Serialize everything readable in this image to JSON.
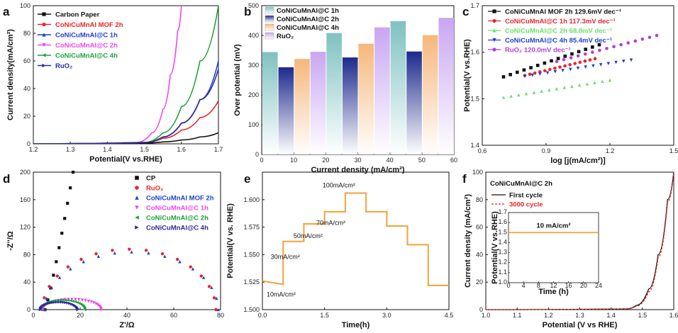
{
  "colors": {
    "black": "#111111",
    "red": "#e8262b",
    "blue": "#1f3fd0",
    "magenta": "#ee48ee",
    "green": "#1fa33a",
    "navy": "#2a2a9a",
    "orange": "#f2a23a",
    "teal": "#7fc1c1",
    "lightgreen": "#6ce06c"
  },
  "chart_data": [
    {
      "panel": "a",
      "type": "line",
      "xlabel": "Potential(V vs.RHE)",
      "ylabel": "Current density(mA/cm²)",
      "xlim": [
        1.2,
        1.7
      ],
      "ylim": [
        0,
        100
      ],
      "xticks": [
        "1.2",
        "1.3",
        "1.4",
        "1.5",
        "1.6",
        "1.7"
      ],
      "yticks": [
        "0",
        "20",
        "40",
        "60",
        "80",
        "100"
      ],
      "series": [
        {
          "name": "Carbon Paper",
          "color": "#111111",
          "marker": "square",
          "x": [
            1.2,
            1.45,
            1.5,
            1.55,
            1.6,
            1.65,
            1.7
          ],
          "y": [
            0,
            0.3,
            0.6,
            1.4,
            2.8,
            5,
            8
          ]
        },
        {
          "name": "CoNiCuMnAl MOF 2h",
          "color": "#e8262b",
          "marker": "circle",
          "x": [
            1.2,
            1.5,
            1.55,
            1.6,
            1.65,
            1.7
          ],
          "y": [
            0,
            1,
            4,
            10,
            19,
            31
          ]
        },
        {
          "name": "CoNiCuMnAl@C 1h",
          "color": "#1f3fd0",
          "marker": "triangle",
          "x": [
            1.2,
            1.5,
            1.55,
            1.6,
            1.65,
            1.7
          ],
          "y": [
            0,
            1,
            5,
            15,
            32,
            60
          ]
        },
        {
          "name": "CoNiCuMnAl@C 2h",
          "color": "#ee48ee",
          "marker": "triangle-down",
          "x": [
            1.2,
            1.48,
            1.52,
            1.55,
            1.57,
            1.59,
            1.6
          ],
          "y": [
            0,
            1,
            8,
            25,
            50,
            82,
            100
          ]
        },
        {
          "name": "CoNiCuMnAl@C 4h",
          "color": "#1fa33a",
          "marker": "triangle-left",
          "x": [
            1.2,
            1.5,
            1.55,
            1.6,
            1.65,
            1.7
          ],
          "y": [
            0,
            1,
            8,
            27,
            60,
            100
          ]
        },
        {
          "name": "RuO₂",
          "color": "#2a2a9a",
          "marker": "triangle-right",
          "x": [
            1.2,
            1.5,
            1.55,
            1.6,
            1.65,
            1.7
          ],
          "y": [
            0,
            1,
            5,
            15,
            32,
            54
          ]
        }
      ]
    },
    {
      "panel": "b",
      "type": "bar",
      "xlabel": "Current density (mA/cm²)",
      "ylabel": "Over potential (mV)",
      "xlim": [
        0,
        60
      ],
      "ylim": [
        0,
        500
      ],
      "xticks": [
        "0",
        "10",
        "20",
        "30",
        "40",
        "50",
        "60"
      ],
      "yticks": [
        "0",
        "100",
        "200",
        "300",
        "400",
        "500"
      ],
      "categories": [
        "10",
        "30",
        "50"
      ],
      "series": [
        {
          "name": "CoNiCuMnAl@C 1h",
          "color": "#7fc1c1",
          "values": [
            344,
            408,
            448
          ]
        },
        {
          "name": "CoNiCuMnAl@C 2h",
          "color": "#1c2a8c",
          "values": [
            293,
            326,
            346
          ]
        },
        {
          "name": "CoNiCuMnAl@C 4h",
          "color": "#f6b77a",
          "values": [
            321,
            372,
            401
          ]
        },
        {
          "name": "RuO₂",
          "color": "#c9a6f2",
          "values": [
            345,
            427,
            459
          ]
        }
      ]
    },
    {
      "panel": "c",
      "type": "scatter",
      "xlabel": "log [j(mA/cm²)]",
      "ylabel": "Potential(V vs.RHE)",
      "xlim": [
        0.6,
        1.5
      ],
      "ylim": [
        1.4,
        1.7
      ],
      "xticks": [
        "0.6",
        "0.9",
        "1.2",
        "1.5"
      ],
      "yticks": [
        "1.4",
        "1.5",
        "1.6",
        "1.7"
      ],
      "series": [
        {
          "name": "CoNiCuMnAl MOF 2h",
          "tafel": "129.6mV dec⁻¹",
          "color": "#111111",
          "marker": "square",
          "x0": 0.7,
          "x1": 1.15,
          "y0": 1.547,
          "y1": 1.616
        },
        {
          "name": "CoNiCuMnAl@C 1h",
          "tafel": "117.3mV dec⁻¹",
          "color": "#e8262b",
          "marker": "circle",
          "x0": 0.8,
          "x1": 1.13,
          "y0": 1.55,
          "y1": 1.586
        },
        {
          "name": "CoNiCuMnAl@C 2h",
          "tafel": "68.8mV dec⁻¹",
          "color": "#6ce06c",
          "marker": "triangle",
          "x0": 0.7,
          "x1": 1.2,
          "y0": 1.503,
          "y1": 1.54
        },
        {
          "name": "CoNiCuMnAl@C 4h",
          "tafel": "85.4mV dec⁻¹",
          "color": "#1f3fd0",
          "marker": "triangle-down",
          "x0": 0.8,
          "x1": 1.3,
          "y0": 1.548,
          "y1": 1.583
        },
        {
          "name": "RuO₂",
          "tafel": "120.0mV dec⁻¹",
          "color": "#b23fd6",
          "marker": "circle",
          "x0": 0.95,
          "x1": 1.42,
          "y0": 1.58,
          "y1": 1.636
        }
      ]
    },
    {
      "panel": "d",
      "type": "scatter",
      "xlabel": "Z'/Ω",
      "ylabel": "-Z''/Ω",
      "xlim": [
        0,
        80
      ],
      "ylim": [
        0,
        200
      ],
      "xticks": [
        "0",
        "20",
        "40",
        "60",
        "80"
      ],
      "yticks": [
        "0",
        "40",
        "80",
        "120",
        "160",
        "200"
      ],
      "series": [
        {
          "name": "CP",
          "color": "#111111",
          "marker": "square",
          "shape": "line",
          "start": 5,
          "end": 17,
          "height": 200
        },
        {
          "name": "RuO₂",
          "color": "#e8262b",
          "marker": "circle",
          "shape": "arc",
          "start": 4,
          "end": 78,
          "height": 88
        },
        {
          "name": "CoNiCuMnAl MOF 2h",
          "color": "#1f3fd0",
          "marker": "triangle",
          "shape": "arc",
          "start": 5,
          "end": 79,
          "height": 84
        },
        {
          "name": "CoNiCuMnAl@C 1h",
          "color": "#ee48ee",
          "marker": "triangle-down",
          "shape": "arc",
          "start": 4,
          "end": 29,
          "height": 15
        },
        {
          "name": "CoNiCuMnAl@C 2h",
          "color": "#1fa33a",
          "marker": "triangle-left",
          "shape": "arc",
          "start": 3,
          "end": 22,
          "height": 14
        },
        {
          "name": "CoNiCuMnAl@C 4h",
          "color": "#2a2a9a",
          "marker": "triangle-right",
          "shape": "arc",
          "start": 3,
          "end": 19,
          "height": 11
        }
      ]
    },
    {
      "panel": "e",
      "type": "line",
      "xlabel": "Time(h)",
      "ylabel": "Potential(V vs. RHE)",
      "xlim": [
        0,
        4.5
      ],
      "ylim": [
        1.5,
        1.625
      ],
      "xticks": [
        "0.0",
        "1.5",
        "3.0",
        "4.5"
      ],
      "yticks": [
        "1.500",
        "1.525",
        "1.550",
        "1.575",
        "1.600"
      ],
      "color": "#f2a23a",
      "x": [
        0,
        0.5,
        0.5,
        1.0,
        1.0,
        1.5,
        1.5,
        2.0,
        2.0,
        2.5,
        2.5,
        3.0,
        3.0,
        3.5,
        3.5,
        4.0,
        4.0,
        4.5
      ],
      "y": [
        1.526,
        1.523,
        1.562,
        1.562,
        1.578,
        1.578,
        1.589,
        1.589,
        1.606,
        1.606,
        1.589,
        1.589,
        1.576,
        1.576,
        1.559,
        1.559,
        1.522,
        1.522
      ],
      "annotations": [
        "10mA/cm²",
        "30mA/cm²",
        "50mA/cm²",
        "70mA/cm²",
        "100mA/cm²"
      ]
    },
    {
      "panel": "f",
      "type": "line",
      "title": "CoNiCuMnAl@C 2h",
      "xlabel": "Potential (V vs RHE)",
      "ylabel": "Current density (mA/cm²)",
      "xlim": [
        1.0,
        1.6
      ],
      "ylim": [
        0,
        100
      ],
      "xticks": [
        "1.0",
        "1.1",
        "1.2",
        "1.3",
        "1.4",
        "1.5",
        "1.6"
      ],
      "yticks": [
        "0",
        "20",
        "40",
        "60",
        "80",
        "100"
      ],
      "series": [
        {
          "name": "First cycle",
          "color": "#111111",
          "x": [
            1.0,
            1.45,
            1.48,
            1.52,
            1.55,
            1.58,
            1.6
          ],
          "y": [
            0,
            0.5,
            3,
            15,
            40,
            80,
            100
          ]
        },
        {
          "name": "3000 cycle",
          "color": "#e8262b",
          "dashed": true,
          "x": [
            1.0,
            1.45,
            1.48,
            1.52,
            1.55,
            1.58,
            1.6
          ],
          "y": [
            0,
            0.5,
            2.5,
            13,
            38,
            78,
            100
          ]
        }
      ],
      "inset": {
        "xlabel": "Time (h)",
        "ylabel": "Potential(V vs.RHE)",
        "label": "10 mA/cm²",
        "xlim": [
          0,
          24
        ],
        "ylim": [
          1.0,
          1.7
        ],
        "xticks": [
          "0",
          "4",
          "8",
          "12",
          "16",
          "20",
          "24"
        ],
        "yticks": [
          "1.0",
          "1.1",
          "1.2",
          "1.3",
          "1.4",
          "1.5",
          "1.6",
          "1.7"
        ],
        "value": 1.5,
        "color": "#f2a23a"
      }
    }
  ]
}
